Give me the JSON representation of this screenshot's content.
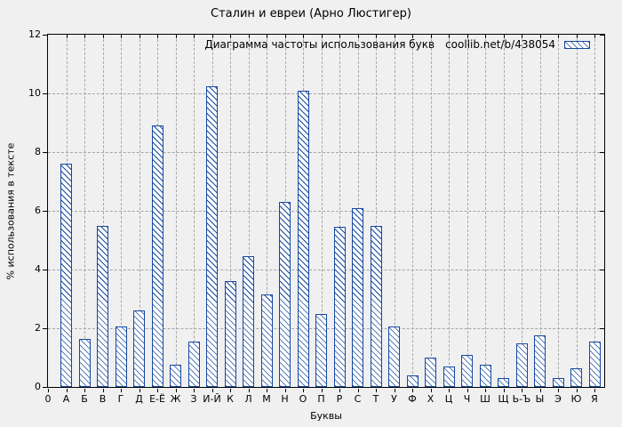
{
  "chart_data": {
    "type": "bar",
    "title": "Сталин и евреи (Арно Люстигер)",
    "legend": {
      "label": "Диаграмма частоты использования букв",
      "source": "coollib.net/b/438054",
      "position": "top-right-inside"
    },
    "xlabel": "Буквы",
    "ylabel": "% использования в тексте",
    "origin_tick_label": "0",
    "categories": [
      "А",
      "Б",
      "В",
      "Г",
      "Д",
      "Е-Ё",
      "Ж",
      "З",
      "И-Й",
      "К",
      "Л",
      "М",
      "Н",
      "О",
      "П",
      "Р",
      "С",
      "Т",
      "У",
      "Ф",
      "Х",
      "Ц",
      "Ч",
      "Ш",
      "Щ",
      "Ь-Ъ",
      "Ы",
      "Э",
      "Ю",
      "Я"
    ],
    "values": [
      7.6,
      1.65,
      5.5,
      2.05,
      2.6,
      8.9,
      0.75,
      1.55,
      10.25,
      3.6,
      4.45,
      3.15,
      6.3,
      10.1,
      2.5,
      5.45,
      6.1,
      5.5,
      2.05,
      0.4,
      1.0,
      0.7,
      1.1,
      0.75,
      0.3,
      1.5,
      1.75,
      0.3,
      0.65,
      1.55
    ],
    "yticks": [
      0,
      2,
      4,
      6,
      8,
      10,
      12
    ],
    "ylim": [
      0,
      12
    ],
    "grid": "dashed horizontal and vertical",
    "bar_style": "diagonal-hatch",
    "colors": {
      "bar_border": "#1548a0",
      "bar_hatch": "#1548a0",
      "bar_fill": "#ffffff",
      "grid": "#a6a6a6",
      "frame": "#000000",
      "background": "#f0f0f0",
      "text": "#000000"
    }
  }
}
